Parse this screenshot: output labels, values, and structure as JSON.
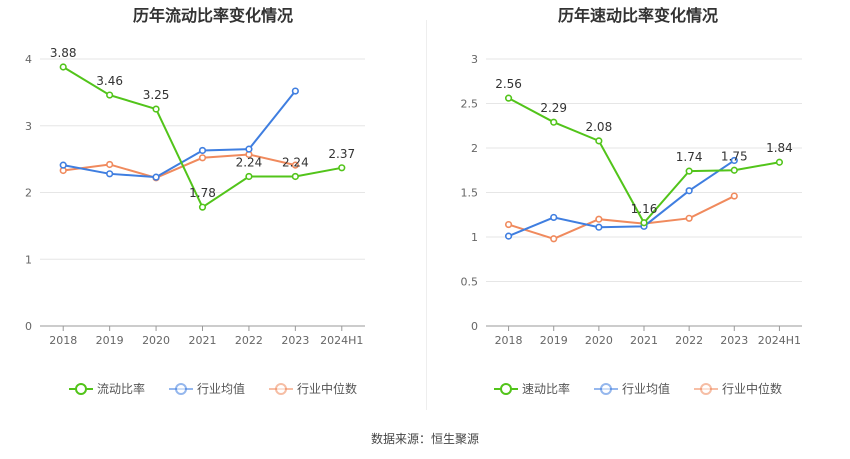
{
  "chart_data": [
    {
      "type": "line",
      "title": "历年流动比率变化情况",
      "categories": [
        "2018",
        "2019",
        "2020",
        "2021",
        "2022",
        "2023",
        "2024H1"
      ],
      "ylim": [
        0,
        4
      ],
      "yticks": [
        0,
        1,
        2,
        3,
        4
      ],
      "grid": true,
      "legend_position": "bottom",
      "series": [
        {
          "name": "流动比率",
          "color": "#52c41a",
          "values": [
            3.88,
            3.46,
            3.25,
            1.78,
            2.24,
            2.24,
            2.37
          ],
          "labels": true
        },
        {
          "name": "行业均值",
          "color": "#3f7ee0",
          "values": [
            2.41,
            2.28,
            2.23,
            2.63,
            2.65,
            3.52,
            null
          ],
          "labels": false
        },
        {
          "name": "行业中位数",
          "color": "#f08a5d",
          "values": [
            2.33,
            2.42,
            2.22,
            2.52,
            2.57,
            2.41,
            null
          ],
          "labels": false
        }
      ]
    },
    {
      "type": "line",
      "title": "历年速动比率变化情况",
      "categories": [
        "2018",
        "2019",
        "2020",
        "2021",
        "2022",
        "2023",
        "2024H1"
      ],
      "ylim": [
        0,
        3
      ],
      "yticks": [
        0,
        0.5,
        1,
        1.5,
        2,
        2.5,
        3
      ],
      "grid": true,
      "legend_position": "bottom",
      "series": [
        {
          "name": "速动比率",
          "color": "#52c41a",
          "values": [
            2.56,
            2.29,
            2.08,
            1.16,
            1.74,
            1.75,
            1.84
          ],
          "labels": true
        },
        {
          "name": "行业均值",
          "color": "#3f7ee0",
          "values": [
            1.01,
            1.22,
            1.11,
            1.12,
            1.52,
            1.86,
            null
          ],
          "labels": false
        },
        {
          "name": "行业中位数",
          "color": "#f08a5d",
          "values": [
            1.14,
            0.98,
            1.2,
            1.15,
            1.21,
            1.46,
            null
          ],
          "labels": false
        }
      ]
    }
  ],
  "footer": {
    "source": "数据来源：恒生聚源"
  }
}
